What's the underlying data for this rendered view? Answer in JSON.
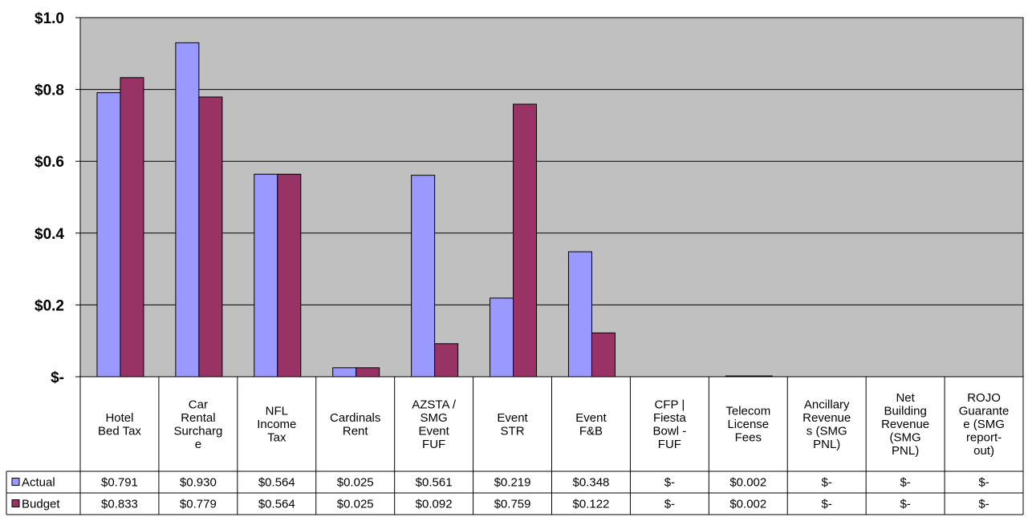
{
  "chart_data": {
    "type": "bar",
    "categories": [
      [
        "Hotel",
        "Bed Tax"
      ],
      [
        "Car",
        "Rental",
        "Surcharg",
        "e"
      ],
      [
        "NFL",
        "Income",
        "Tax"
      ],
      [
        "Cardinals",
        "Rent"
      ],
      [
        "AZSTA /",
        "SMG",
        "Event",
        "FUF"
      ],
      [
        "Event",
        "STR"
      ],
      [
        "Event",
        "F&B"
      ],
      [
        "CFP |",
        "Fiesta",
        "Bowl -",
        "FUF"
      ],
      [
        "Telecom",
        "License",
        "Fees"
      ],
      [
        "Ancillary",
        "Revenue",
        "s (SMG",
        "PNL)"
      ],
      [
        "Net",
        "Building",
        "Revenue",
        "(SMG",
        "PNL)"
      ],
      [
        "ROJO",
        "Guarante",
        "e (SMG",
        "report-",
        "out)"
      ]
    ],
    "series": [
      {
        "name": "Actual",
        "color": "#9999ff",
        "values": [
          0.791,
          0.93,
          0.564,
          0.025,
          0.561,
          0.219,
          0.348,
          0,
          0.002,
          0,
          0,
          0
        ],
        "labels": [
          "$0.791",
          "$0.930",
          "$0.564",
          "$0.025",
          "$0.561",
          "$0.219",
          "$0.348",
          "$-",
          "$0.002",
          "$-",
          "$-",
          "$-"
        ]
      },
      {
        "name": "Budget",
        "color": "#993366",
        "values": [
          0.833,
          0.779,
          0.564,
          0.025,
          0.092,
          0.759,
          0.122,
          0,
          0.002,
          0,
          0,
          0
        ],
        "labels": [
          "$0.833",
          "$0.779",
          "$0.564",
          "$0.025",
          "$0.092",
          "$0.759",
          "$0.122",
          "$-",
          "$0.002",
          "$-",
          "$-",
          "$-"
        ]
      }
    ],
    "ylim": [
      0,
      1.0
    ],
    "yticks": [
      0,
      0.2,
      0.4,
      0.6,
      0.8,
      1.0
    ],
    "ytick_labels": [
      "$-",
      "$0.2",
      "$0.4",
      "$0.6",
      "$0.8",
      "$1.0"
    ],
    "plot_background": "#c0c0c0",
    "grid": true,
    "legend": "data-table-left"
  }
}
